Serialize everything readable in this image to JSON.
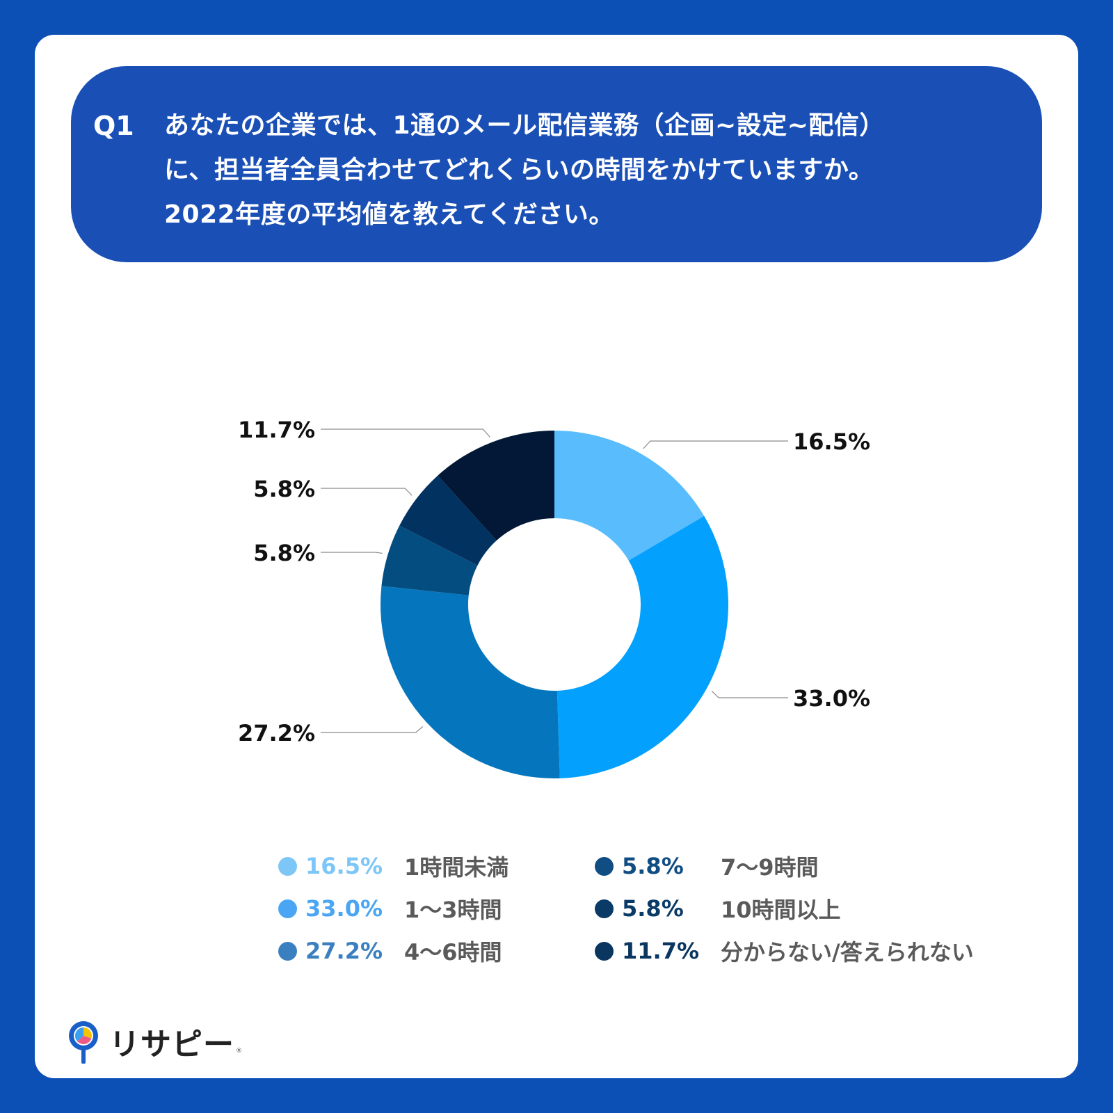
{
  "question": {
    "number": "Q1",
    "text": "あなたの企業では、1通のメール配信業務（企画~設定~配信）\nに、担当者全員合わせてどれくらいの時間をかけていますか。\n2022年度の平均値を教えてください。"
  },
  "chart_data": {
    "type": "pie",
    "donut": true,
    "unit": "%",
    "categories": [
      "1時間未満",
      "1〜3時間",
      "4〜6時間",
      "7〜9時間",
      "10時間以上",
      "分からない/答えられない"
    ],
    "values": [
      16.5,
      33.0,
      27.2,
      5.8,
      5.8,
      11.7
    ],
    "value_labels": [
      "16.5%",
      "33.0%",
      "27.2%",
      "5.8%",
      "5.8%",
      "11.7%"
    ],
    "slice_colors": [
      "#59bdfd",
      "#03a0fe",
      "#0576bd",
      "#034d81",
      "#023260",
      "#021836"
    ],
    "legend_colors": [
      "#7cc6f8",
      "#4aa6f4",
      "#3a7fc0",
      "#0f4d82",
      "#0a3a66",
      "#0a3660"
    ],
    "legend_placement": "bottom"
  },
  "logo": {
    "text": "リサピー",
    "registered": "®",
    "icon": "map-pin-pie-icon"
  }
}
